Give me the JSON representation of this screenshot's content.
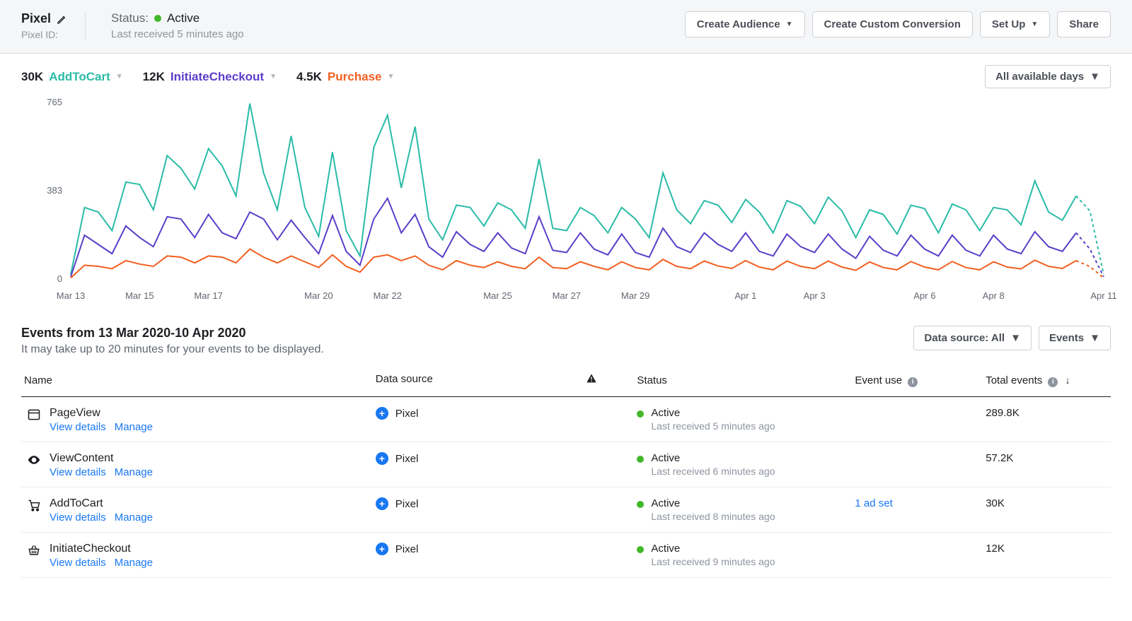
{
  "header": {
    "pixel_label": "Pixel",
    "pixel_id_label": "Pixel ID:",
    "status_label": "Status:",
    "status_value": "Active",
    "status_dot_color": "#42b72a",
    "status_sub": "Last received 5 minutes ago",
    "buttons": {
      "create_audience": "Create Audience",
      "create_conversion": "Create Custom Conversion",
      "set_up": "Set Up",
      "share": "Share"
    }
  },
  "chart": {
    "type": "line",
    "legend": [
      {
        "count": "30K",
        "name": "AddToCart",
        "color": "#2abba7"
      },
      {
        "count": "12K",
        "name": "InitiateCheckout",
        "color": "#5b3ec8"
      },
      {
        "count": "4.5K",
        "name": "Purchase",
        "color": "#f25f20"
      }
    ],
    "date_filter_label": "All available days",
    "y_ticks": [
      "765",
      "383",
      "0"
    ],
    "y_max": 765,
    "x_labels": [
      "Mar 13",
      "Mar 15",
      "Mar 17",
      "Mar 20",
      "Mar 22",
      "Mar 25",
      "Mar 27",
      "Mar 29",
      "Apr 1",
      "Apr 3",
      "Apr 6",
      "Apr 8",
      "Apr 11"
    ],
    "x_positions": [
      0,
      5,
      10,
      18,
      23,
      31,
      36,
      41,
      49,
      54,
      62,
      67,
      75
    ],
    "n_points": 76,
    "dash_after_index": 73,
    "series": {
      "AddToCart": {
        "color": "#2abba7",
        "stroke_width": 2,
        "values": [
          20,
          310,
          290,
          210,
          420,
          410,
          300,
          535,
          480,
          390,
          565,
          490,
          360,
          760,
          460,
          300,
          620,
          310,
          185,
          550,
          210,
          100,
          570,
          710,
          395,
          660,
          260,
          170,
          320,
          310,
          230,
          330,
          300,
          220,
          520,
          220,
          210,
          310,
          275,
          200,
          310,
          260,
          180,
          460,
          300,
          240,
          340,
          320,
          245,
          345,
          290,
          200,
          340,
          315,
          240,
          355,
          295,
          180,
          300,
          280,
          195,
          320,
          305,
          200,
          325,
          300,
          210,
          310,
          300,
          235,
          425,
          290,
          255,
          360,
          295,
          20
        ]
      },
      "InitiateCheckout": {
        "color": "#5b3ec8",
        "stroke_width": 2,
        "values": [
          10,
          190,
          150,
          110,
          230,
          180,
          140,
          270,
          260,
          180,
          280,
          200,
          175,
          290,
          260,
          170,
          255,
          180,
          110,
          275,
          120,
          60,
          260,
          350,
          200,
          280,
          140,
          95,
          205,
          150,
          120,
          200,
          135,
          110,
          270,
          125,
          115,
          200,
          130,
          105,
          195,
          115,
          95,
          220,
          140,
          115,
          200,
          150,
          120,
          200,
          120,
          100,
          195,
          140,
          115,
          195,
          130,
          90,
          185,
          125,
          100,
          190,
          130,
          100,
          190,
          125,
          100,
          190,
          130,
          110,
          205,
          140,
          120,
          200,
          130,
          10
        ]
      },
      "Purchase": {
        "color": "#f25f20",
        "stroke_width": 2,
        "values": [
          5,
          60,
          55,
          45,
          80,
          65,
          55,
          100,
          95,
          70,
          100,
          95,
          70,
          130,
          95,
          70,
          100,
          75,
          50,
          105,
          55,
          30,
          95,
          105,
          80,
          100,
          60,
          40,
          80,
          60,
          50,
          75,
          55,
          45,
          95,
          50,
          45,
          75,
          55,
          40,
          75,
          50,
          40,
          85,
          55,
          45,
          78,
          57,
          46,
          80,
          52,
          40,
          78,
          55,
          45,
          78,
          52,
          38,
          74,
          50,
          40,
          76,
          52,
          40,
          76,
          50,
          40,
          75,
          52,
          44,
          82,
          55,
          46,
          80,
          54,
          5
        ]
      }
    },
    "background_color": "#ffffff",
    "axis_color": "#606770"
  },
  "events_header": {
    "title": "Events from 13 Mar 2020-10 Apr 2020",
    "subtitle": "It may take up to 20 minutes for your events to be displayed.",
    "data_source_btn": "Data source: All",
    "events_btn": "Events"
  },
  "table": {
    "columns": {
      "name": "Name",
      "data_source": "Data source",
      "status": "Status",
      "event_use": "Event use",
      "total_events": "Total events"
    },
    "rows": [
      {
        "icon": "window",
        "name": "PageView",
        "view_details": "View details",
        "manage": "Manage",
        "data_source": "Pixel",
        "status": "Active",
        "status_dot": "#42b72a",
        "status_time": "Last received 5 minutes ago",
        "event_use": "",
        "total": "289.8K"
      },
      {
        "icon": "eye",
        "name": "ViewContent",
        "view_details": "View details",
        "manage": "Manage",
        "data_source": "Pixel",
        "status": "Active",
        "status_dot": "#42b72a",
        "status_time": "Last received 6 minutes ago",
        "event_use": "",
        "total": "57.2K"
      },
      {
        "icon": "cart",
        "name": "AddToCart",
        "view_details": "View details",
        "manage": "Manage",
        "data_source": "Pixel",
        "status": "Active",
        "status_dot": "#42b72a",
        "status_time": "Last received 8 minutes ago",
        "event_use": "1 ad set",
        "total": "30K"
      },
      {
        "icon": "basket",
        "name": "InitiateCheckout",
        "view_details": "View details",
        "manage": "Manage",
        "data_source": "Pixel",
        "status": "Active",
        "status_dot": "#42b72a",
        "status_time": "Last received 9 minutes ago",
        "event_use": "",
        "total": "12K"
      }
    ]
  }
}
